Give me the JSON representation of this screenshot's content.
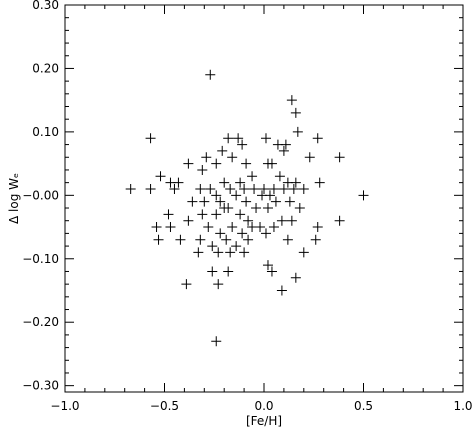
{
  "chart_data": {
    "type": "scatter",
    "xlabel": "[Fe/H]",
    "ylabel": "Δ log Wₑ",
    "xlim": [
      -1.0,
      1.0
    ],
    "ylim": [
      -0.31,
      0.3
    ],
    "x_ticks": [
      -1.0,
      -0.5,
      0.0,
      0.5,
      1.0
    ],
    "x_tick_labels": [
      "−1.0",
      "−0.5",
      "0.0",
      "0.5",
      "1.0"
    ],
    "y_ticks": [
      -0.3,
      -0.2,
      -0.1,
      0.0,
      0.1,
      0.2,
      0.3
    ],
    "y_tick_labels": [
      "−0.30",
      "−0.20",
      "−0.10",
      "−0.00",
      "0.10",
      "0.20",
      "0.30"
    ],
    "marker": "plus",
    "color": "#000000",
    "grid": false,
    "series": [
      {
        "points": [
          [
            -0.27,
            0.19
          ],
          [
            0.14,
            0.15
          ],
          [
            0.16,
            0.13
          ],
          [
            0.17,
            0.1
          ],
          [
            -0.57,
            0.09
          ],
          [
            -0.18,
            0.09
          ],
          [
            -0.13,
            0.09
          ],
          [
            -0.11,
            0.08
          ],
          [
            0.01,
            0.09
          ],
          [
            0.07,
            0.08
          ],
          [
            0.11,
            0.08
          ],
          [
            0.27,
            0.09
          ],
          [
            -0.21,
            0.07
          ],
          [
            -0.16,
            0.06
          ],
          [
            -0.29,
            0.06
          ],
          [
            0.1,
            0.07
          ],
          [
            0.23,
            0.06
          ],
          [
            0.38,
            0.06
          ],
          [
            -0.38,
            0.05
          ],
          [
            -0.31,
            0.04
          ],
          [
            -0.24,
            0.05
          ],
          [
            -0.09,
            0.05
          ],
          [
            0.02,
            0.05
          ],
          [
            0.04,
            0.05
          ],
          [
            -0.52,
            0.03
          ],
          [
            -0.47,
            0.02
          ],
          [
            -0.43,
            0.02
          ],
          [
            -0.2,
            0.02
          ],
          [
            -0.12,
            0.02
          ],
          [
            -0.06,
            0.03
          ],
          [
            0.08,
            0.03
          ],
          [
            0.12,
            0.02
          ],
          [
            0.16,
            0.02
          ],
          [
            0.28,
            0.02
          ],
          [
            -0.67,
            0.01
          ],
          [
            -0.57,
            0.01
          ],
          [
            -0.45,
            0.01
          ],
          [
            -0.32,
            0.01
          ],
          [
            -0.27,
            0.01
          ],
          [
            -0.17,
            0.01
          ],
          [
            -0.1,
            0.01
          ],
          [
            -0.05,
            0.01
          ],
          [
            0.0,
            0.01
          ],
          [
            0.05,
            0.01
          ],
          [
            0.1,
            0.01
          ],
          [
            0.15,
            0.01
          ],
          [
            0.2,
            0.01
          ],
          [
            0.5,
            0.0
          ],
          [
            -0.24,
            0.0
          ],
          [
            -0.14,
            0.0
          ],
          [
            -0.01,
            0.0
          ],
          [
            0.03,
            0.0
          ],
          [
            -0.36,
            -0.01
          ],
          [
            -0.3,
            -0.01
          ],
          [
            -0.22,
            -0.01
          ],
          [
            -0.09,
            -0.01
          ],
          [
            0.06,
            -0.01
          ],
          [
            0.13,
            -0.01
          ],
          [
            -0.48,
            -0.03
          ],
          [
            -0.2,
            -0.02
          ],
          [
            -0.12,
            -0.03
          ],
          [
            -0.04,
            -0.02
          ],
          [
            0.02,
            -0.02
          ],
          [
            0.18,
            -0.02
          ],
          [
            -0.38,
            -0.04
          ],
          [
            -0.31,
            -0.03
          ],
          [
            -0.24,
            -0.03
          ],
          [
            -0.18,
            -0.02
          ],
          [
            -0.08,
            -0.04
          ],
          [
            0.09,
            -0.04
          ],
          [
            0.14,
            -0.04
          ],
          [
            0.38,
            -0.04
          ],
          [
            -0.54,
            -0.05
          ],
          [
            -0.47,
            -0.05
          ],
          [
            -0.28,
            -0.05
          ],
          [
            -0.16,
            -0.05
          ],
          [
            -0.02,
            -0.05
          ],
          [
            0.05,
            -0.05
          ],
          [
            -0.22,
            -0.06
          ],
          [
            -0.11,
            -0.06
          ],
          [
            -0.06,
            -0.05
          ],
          [
            0.27,
            -0.05
          ],
          [
            -0.53,
            -0.07
          ],
          [
            -0.42,
            -0.07
          ],
          [
            -0.32,
            -0.07
          ],
          [
            -0.26,
            -0.08
          ],
          [
            -0.19,
            -0.07
          ],
          [
            -0.14,
            -0.08
          ],
          [
            -0.08,
            -0.07
          ],
          [
            0.01,
            -0.06
          ],
          [
            0.12,
            -0.07
          ],
          [
            0.26,
            -0.07
          ],
          [
            -0.33,
            -0.09
          ],
          [
            -0.23,
            -0.09
          ],
          [
            -0.17,
            -0.09
          ],
          [
            -0.1,
            -0.09
          ],
          [
            0.2,
            -0.09
          ],
          [
            -0.26,
            -0.12
          ],
          [
            -0.18,
            -0.12
          ],
          [
            0.02,
            -0.11
          ],
          [
            0.04,
            -0.12
          ],
          [
            -0.23,
            -0.14
          ],
          [
            -0.39,
            -0.14
          ],
          [
            0.16,
            -0.13
          ],
          [
            0.09,
            -0.15
          ],
          [
            -0.24,
            -0.23
          ]
        ]
      }
    ]
  }
}
